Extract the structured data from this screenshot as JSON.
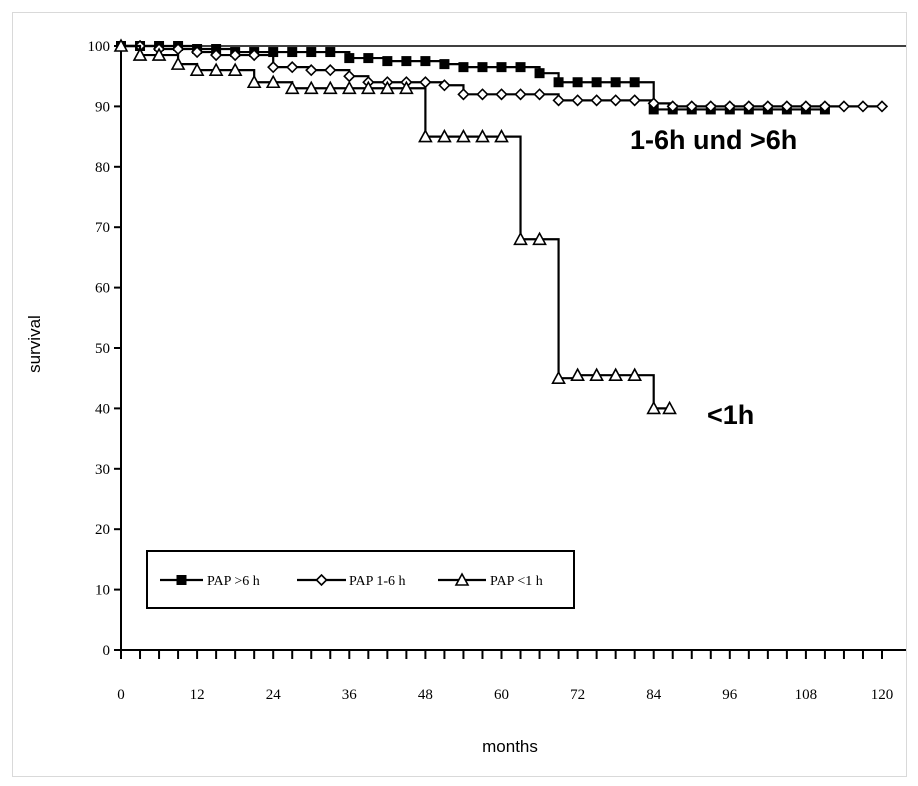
{
  "chart_data": {
    "type": "line",
    "step": true,
    "title": "",
    "xlabel": "months",
    "ylabel": "survival",
    "xlim": [
      0,
      120
    ],
    "ylim": [
      0,
      100
    ],
    "x_ticks": [
      0,
      12,
      24,
      36,
      48,
      60,
      72,
      84,
      96,
      108,
      120
    ],
    "y_ticks": [
      0,
      10,
      20,
      30,
      40,
      50,
      60,
      70,
      80,
      90,
      100
    ],
    "grid": false,
    "legend_position": "bottom-left",
    "series": [
      {
        "name": "PAP >6 h",
        "marker": "filled-square",
        "points": [
          [
            0,
            100
          ],
          [
            3,
            100
          ],
          [
            6,
            100
          ],
          [
            9,
            100
          ],
          [
            12,
            99.5
          ],
          [
            15,
            99.5
          ],
          [
            18,
            99
          ],
          [
            21,
            99
          ],
          [
            24,
            99
          ],
          [
            27,
            99
          ],
          [
            30,
            99
          ],
          [
            33,
            99
          ],
          [
            36,
            98
          ],
          [
            39,
            98
          ],
          [
            42,
            97.5
          ],
          [
            45,
            97.5
          ],
          [
            48,
            97.5
          ],
          [
            51,
            97
          ],
          [
            54,
            96.5
          ],
          [
            57,
            96.5
          ],
          [
            60,
            96.5
          ],
          [
            63,
            96.5
          ],
          [
            66,
            95.5
          ],
          [
            69,
            94
          ],
          [
            72,
            94
          ],
          [
            75,
            94
          ],
          [
            78,
            94
          ],
          [
            81,
            94
          ],
          [
            84,
            89.5
          ],
          [
            87,
            89.5
          ],
          [
            90,
            89.5
          ],
          [
            93,
            89.5
          ],
          [
            96,
            89.5
          ],
          [
            99,
            89.5
          ],
          [
            102,
            89.5
          ],
          [
            105,
            89.5
          ],
          [
            108,
            89.5
          ],
          [
            111,
            89.5
          ]
        ]
      },
      {
        "name": "PAP 1-6 h",
        "marker": "diamond",
        "points": [
          [
            0,
            100
          ],
          [
            3,
            100
          ],
          [
            6,
            99.5
          ],
          [
            9,
            99.5
          ],
          [
            12,
            99
          ],
          [
            15,
            98.5
          ],
          [
            18,
            98.5
          ],
          [
            21,
            98.5
          ],
          [
            24,
            96.5
          ],
          [
            27,
            96.5
          ],
          [
            30,
            96
          ],
          [
            33,
            96
          ],
          [
            36,
            95
          ],
          [
            39,
            94
          ],
          [
            42,
            94
          ],
          [
            45,
            94
          ],
          [
            48,
            94
          ],
          [
            51,
            93.5
          ],
          [
            54,
            92
          ],
          [
            57,
            92
          ],
          [
            60,
            92
          ],
          [
            63,
            92
          ],
          [
            66,
            92
          ],
          [
            69,
            91
          ],
          [
            72,
            91
          ],
          [
            75,
            91
          ],
          [
            78,
            91
          ],
          [
            81,
            91
          ],
          [
            84,
            90.5
          ],
          [
            87,
            90
          ],
          [
            90,
            90
          ],
          [
            93,
            90
          ],
          [
            96,
            90
          ],
          [
            99,
            90
          ],
          [
            102,
            90
          ],
          [
            105,
            90
          ],
          [
            108,
            90
          ],
          [
            111,
            90
          ],
          [
            114,
            90
          ],
          [
            117,
            90
          ],
          [
            120,
            90
          ]
        ]
      },
      {
        "name": "PAP <1 h",
        "marker": "open-triangle",
        "points": [
          [
            0,
            100
          ],
          [
            3,
            98.5
          ],
          [
            6,
            98.5
          ],
          [
            9,
            97
          ],
          [
            12,
            96
          ],
          [
            15,
            96
          ],
          [
            18,
            96
          ],
          [
            21,
            94
          ],
          [
            24,
            94
          ],
          [
            27,
            93
          ],
          [
            30,
            93
          ],
          [
            33,
            93
          ],
          [
            36,
            93
          ],
          [
            39,
            93
          ],
          [
            42,
            93
          ],
          [
            45,
            93
          ],
          [
            48,
            85
          ],
          [
            51,
            85
          ],
          [
            54,
            85
          ],
          [
            57,
            85
          ],
          [
            60,
            85
          ],
          [
            63,
            68
          ],
          [
            66,
            68
          ],
          [
            69,
            45
          ],
          [
            72,
            45.5
          ],
          [
            75,
            45.5
          ],
          [
            78,
            45.5
          ],
          [
            81,
            45.5
          ],
          [
            84,
            40
          ],
          [
            86.5,
            40
          ]
        ]
      }
    ],
    "annotations": [
      "1-6h und >6h",
      "<1h"
    ]
  }
}
